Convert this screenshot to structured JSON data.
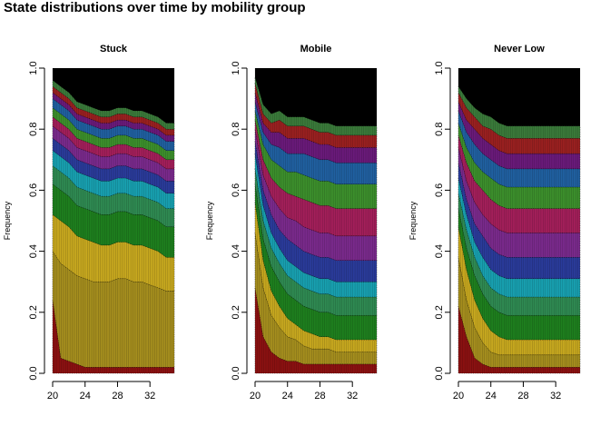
{
  "title": "State distributions over time by mobility group",
  "colors": {
    "background": "#ffffff",
    "top_band": "#000000",
    "segment_border": "#000000",
    "palette": [
      "#8b1111",
      "#a58e1e",
      "#c7a81f",
      "#1e7f1e",
      "#2f8a52",
      "#18a0b0",
      "#2a3b9a",
      "#7a2a8c",
      "#a31f5a",
      "#3c8f2c",
      "#2060a0",
      "#6a1a7a",
      "#9a2020",
      "#3a7a3a",
      "#2d2f8a",
      "#b02a7a"
    ]
  },
  "chart_data": [
    {
      "type": "area",
      "subtype": "stacked state-distribution plot",
      "title": "Stuck",
      "xlabel": "",
      "ylabel": "Frequency",
      "xlim": [
        20,
        35
      ],
      "ylim": [
        0,
        1
      ],
      "x_ticks": [
        "20",
        "24",
        "28",
        "32"
      ],
      "y_ticks": [
        "0.0",
        "0.2",
        "0.4",
        "0.6",
        "0.8",
        "1.0"
      ],
      "x": [
        20,
        21,
        22,
        23,
        24,
        25,
        26,
        27,
        28,
        29,
        30,
        31,
        32,
        33,
        34,
        35
      ],
      "series": [
        {
          "values": [
            0.24,
            0.05,
            0.04,
            0.03,
            0.02,
            0.02,
            0.02,
            0.02,
            0.02,
            0.02,
            0.02,
            0.02,
            0.02,
            0.02,
            0.02,
            0.02
          ]
        },
        {
          "values": [
            0.16,
            0.31,
            0.3,
            0.29,
            0.29,
            0.28,
            0.28,
            0.28,
            0.29,
            0.29,
            0.28,
            0.28,
            0.27,
            0.26,
            0.25,
            0.25
          ]
        },
        {
          "values": [
            0.12,
            0.14,
            0.14,
            0.13,
            0.13,
            0.13,
            0.12,
            0.12,
            0.12,
            0.12,
            0.12,
            0.12,
            0.12,
            0.12,
            0.11,
            0.11
          ]
        },
        {
          "values": [
            0.1,
            0.1,
            0.1,
            0.1,
            0.1,
            0.1,
            0.1,
            0.1,
            0.1,
            0.1,
            0.1,
            0.1,
            0.1,
            0.1,
            0.1,
            0.1
          ]
        },
        {
          "values": [
            0.06,
            0.06,
            0.06,
            0.06,
            0.06,
            0.06,
            0.06,
            0.06,
            0.06,
            0.06,
            0.06,
            0.06,
            0.06,
            0.06,
            0.06,
            0.06
          ]
        },
        {
          "values": [
            0.05,
            0.05,
            0.05,
            0.05,
            0.05,
            0.05,
            0.05,
            0.05,
            0.05,
            0.05,
            0.05,
            0.05,
            0.05,
            0.05,
            0.05,
            0.05
          ]
        },
        {
          "values": [
            0.04,
            0.04,
            0.04,
            0.04,
            0.04,
            0.04,
            0.04,
            0.04,
            0.04,
            0.04,
            0.04,
            0.04,
            0.04,
            0.04,
            0.04,
            0.04
          ]
        },
        {
          "values": [
            0.04,
            0.04,
            0.04,
            0.04,
            0.04,
            0.04,
            0.04,
            0.04,
            0.04,
            0.04,
            0.04,
            0.04,
            0.04,
            0.04,
            0.04,
            0.04
          ]
        },
        {
          "values": [
            0.03,
            0.03,
            0.03,
            0.03,
            0.03,
            0.03,
            0.03,
            0.03,
            0.03,
            0.03,
            0.03,
            0.03,
            0.03,
            0.03,
            0.03,
            0.03
          ]
        },
        {
          "values": [
            0.03,
            0.03,
            0.03,
            0.03,
            0.03,
            0.03,
            0.03,
            0.03,
            0.03,
            0.03,
            0.03,
            0.03,
            0.03,
            0.03,
            0.03,
            0.03
          ]
        },
        {
          "values": [
            0.03,
            0.03,
            0.03,
            0.03,
            0.03,
            0.03,
            0.03,
            0.03,
            0.03,
            0.03,
            0.03,
            0.03,
            0.03,
            0.03,
            0.03,
            0.03
          ]
        },
        {
          "values": [
            0.02,
            0.02,
            0.02,
            0.02,
            0.02,
            0.02,
            0.02,
            0.02,
            0.02,
            0.02,
            0.02,
            0.02,
            0.02,
            0.02,
            0.02,
            0.02
          ]
        },
        {
          "values": [
            0.02,
            0.02,
            0.02,
            0.02,
            0.02,
            0.02,
            0.02,
            0.02,
            0.02,
            0.02,
            0.02,
            0.02,
            0.02,
            0.02,
            0.02,
            0.02
          ]
        },
        {
          "values": [
            0.02,
            0.02,
            0.02,
            0.02,
            0.02,
            0.02,
            0.02,
            0.02,
            0.02,
            0.02,
            0.02,
            0.02,
            0.02,
            0.02,
            0.02,
            0.02
          ]
        }
      ]
    },
    {
      "type": "area",
      "subtype": "stacked state-distribution plot",
      "title": "Mobile",
      "xlabel": "",
      "ylabel": "Frequency",
      "xlim": [
        20,
        35
      ],
      "ylim": [
        0,
        1
      ],
      "x_ticks": [
        "20",
        "24",
        "28",
        "32"
      ],
      "y_ticks": [
        "0.0",
        "0.2",
        "0.4",
        "0.6",
        "0.8",
        "1.0"
      ],
      "x": [
        20,
        21,
        22,
        23,
        24,
        25,
        26,
        27,
        28,
        29,
        30,
        31,
        32,
        33,
        34,
        35
      ],
      "series": [
        {
          "values": [
            0.28,
            0.12,
            0.07,
            0.05,
            0.04,
            0.04,
            0.03,
            0.03,
            0.03,
            0.03,
            0.03,
            0.03,
            0.03,
            0.03,
            0.03,
            0.03
          ]
        },
        {
          "values": [
            0.18,
            0.16,
            0.12,
            0.1,
            0.08,
            0.07,
            0.06,
            0.05,
            0.05,
            0.05,
            0.04,
            0.04,
            0.04,
            0.04,
            0.04,
            0.04
          ]
        },
        {
          "values": [
            0.1,
            0.09,
            0.08,
            0.07,
            0.06,
            0.05,
            0.05,
            0.05,
            0.04,
            0.04,
            0.04,
            0.04,
            0.04,
            0.04,
            0.04,
            0.04
          ]
        },
        {
          "values": [
            0.06,
            0.07,
            0.08,
            0.08,
            0.08,
            0.08,
            0.08,
            0.08,
            0.08,
            0.08,
            0.08,
            0.08,
            0.08,
            0.08,
            0.08,
            0.08
          ]
        },
        {
          "values": [
            0.05,
            0.06,
            0.06,
            0.06,
            0.06,
            0.06,
            0.06,
            0.06,
            0.06,
            0.06,
            0.06,
            0.06,
            0.06,
            0.06,
            0.06,
            0.06
          ]
        },
        {
          "values": [
            0.05,
            0.05,
            0.05,
            0.05,
            0.05,
            0.05,
            0.05,
            0.05,
            0.05,
            0.05,
            0.05,
            0.05,
            0.05,
            0.05,
            0.05,
            0.05
          ]
        },
        {
          "values": [
            0.04,
            0.05,
            0.06,
            0.06,
            0.07,
            0.07,
            0.07,
            0.07,
            0.07,
            0.07,
            0.07,
            0.07,
            0.07,
            0.07,
            0.07,
            0.07
          ]
        },
        {
          "values": [
            0.04,
            0.05,
            0.06,
            0.07,
            0.07,
            0.08,
            0.08,
            0.08,
            0.08,
            0.08,
            0.08,
            0.08,
            0.08,
            0.08,
            0.08,
            0.08
          ]
        },
        {
          "values": [
            0.03,
            0.05,
            0.06,
            0.07,
            0.08,
            0.08,
            0.09,
            0.09,
            0.09,
            0.09,
            0.09,
            0.09,
            0.09,
            0.09,
            0.09,
            0.09
          ]
        },
        {
          "values": [
            0.03,
            0.05,
            0.06,
            0.07,
            0.07,
            0.08,
            0.08,
            0.08,
            0.08,
            0.08,
            0.08,
            0.08,
            0.08,
            0.08,
            0.08,
            0.08
          ]
        },
        {
          "values": [
            0.03,
            0.04,
            0.05,
            0.06,
            0.06,
            0.06,
            0.07,
            0.07,
            0.07,
            0.07,
            0.07,
            0.07,
            0.07,
            0.07,
            0.07,
            0.07
          ]
        },
        {
          "values": [
            0.03,
            0.03,
            0.04,
            0.05,
            0.05,
            0.05,
            0.05,
            0.05,
            0.05,
            0.05,
            0.05,
            0.05,
            0.05,
            0.05,
            0.05,
            0.05
          ]
        },
        {
          "values": [
            0.03,
            0.03,
            0.03,
            0.04,
            0.04,
            0.04,
            0.04,
            0.04,
            0.04,
            0.04,
            0.04,
            0.04,
            0.04,
            0.04,
            0.04,
            0.04
          ]
        },
        {
          "values": [
            0.02,
            0.03,
            0.03,
            0.03,
            0.03,
            0.03,
            0.03,
            0.03,
            0.03,
            0.03,
            0.03,
            0.03,
            0.03,
            0.03,
            0.03,
            0.03
          ]
        }
      ]
    },
    {
      "type": "area",
      "subtype": "stacked state-distribution plot",
      "title": "Never Low",
      "xlabel": "",
      "ylabel": "Frequency",
      "xlim": [
        20,
        35
      ],
      "ylim": [
        0,
        1
      ],
      "x_ticks": [
        "20",
        "24",
        "28",
        "32"
      ],
      "y_ticks": [
        "0.0",
        "0.2",
        "0.4",
        "0.6",
        "0.8",
        "1.0"
      ],
      "x": [
        20,
        21,
        22,
        23,
        24,
        25,
        26,
        27,
        28,
        29,
        30,
        31,
        32,
        33,
        34,
        35
      ],
      "series": [
        {
          "values": [
            0.22,
            0.12,
            0.05,
            0.03,
            0.02,
            0.02,
            0.02,
            0.02,
            0.02,
            0.02,
            0.02,
            0.02,
            0.02,
            0.02,
            0.02,
            0.02
          ]
        },
        {
          "values": [
            0.16,
            0.12,
            0.1,
            0.07,
            0.05,
            0.04,
            0.04,
            0.04,
            0.04,
            0.04,
            0.04,
            0.04,
            0.04,
            0.04,
            0.04,
            0.04
          ]
        },
        {
          "values": [
            0.1,
            0.1,
            0.09,
            0.08,
            0.07,
            0.06,
            0.05,
            0.05,
            0.05,
            0.05,
            0.05,
            0.05,
            0.05,
            0.05,
            0.05,
            0.05
          ]
        },
        {
          "values": [
            0.06,
            0.07,
            0.08,
            0.08,
            0.08,
            0.08,
            0.08,
            0.08,
            0.08,
            0.08,
            0.08,
            0.08,
            0.08,
            0.08,
            0.08,
            0.08
          ]
        },
        {
          "values": [
            0.05,
            0.06,
            0.06,
            0.06,
            0.06,
            0.06,
            0.06,
            0.06,
            0.06,
            0.06,
            0.06,
            0.06,
            0.06,
            0.06,
            0.06,
            0.06
          ]
        },
        {
          "values": [
            0.05,
            0.05,
            0.05,
            0.06,
            0.06,
            0.06,
            0.06,
            0.06,
            0.06,
            0.06,
            0.06,
            0.06,
            0.06,
            0.06,
            0.06,
            0.06
          ]
        },
        {
          "values": [
            0.05,
            0.05,
            0.06,
            0.07,
            0.07,
            0.07,
            0.07,
            0.07,
            0.07,
            0.07,
            0.07,
            0.07,
            0.07,
            0.07,
            0.07,
            0.07
          ]
        },
        {
          "values": [
            0.05,
            0.06,
            0.07,
            0.07,
            0.08,
            0.08,
            0.08,
            0.08,
            0.08,
            0.08,
            0.08,
            0.08,
            0.08,
            0.08,
            0.08,
            0.08
          ]
        },
        {
          "values": [
            0.04,
            0.06,
            0.07,
            0.08,
            0.08,
            0.08,
            0.08,
            0.08,
            0.08,
            0.08,
            0.08,
            0.08,
            0.08,
            0.08,
            0.08,
            0.08
          ]
        },
        {
          "values": [
            0.04,
            0.05,
            0.06,
            0.06,
            0.07,
            0.07,
            0.07,
            0.07,
            0.07,
            0.07,
            0.07,
            0.07,
            0.07,
            0.07,
            0.07,
            0.07
          ]
        },
        {
          "values": [
            0.04,
            0.05,
            0.06,
            0.06,
            0.06,
            0.06,
            0.06,
            0.06,
            0.06,
            0.06,
            0.06,
            0.06,
            0.06,
            0.06,
            0.06,
            0.06
          ]
        },
        {
          "values": [
            0.03,
            0.04,
            0.05,
            0.05,
            0.05,
            0.05,
            0.05,
            0.05,
            0.05,
            0.05,
            0.05,
            0.05,
            0.05,
            0.05,
            0.05,
            0.05
          ]
        },
        {
          "values": [
            0.03,
            0.04,
            0.04,
            0.04,
            0.05,
            0.05,
            0.05,
            0.05,
            0.05,
            0.05,
            0.05,
            0.05,
            0.05,
            0.05,
            0.05,
            0.05
          ]
        },
        {
          "values": [
            0.02,
            0.03,
            0.03,
            0.04,
            0.04,
            0.04,
            0.04,
            0.04,
            0.04,
            0.04,
            0.04,
            0.04,
            0.04,
            0.04,
            0.04,
            0.04
          ]
        }
      ]
    }
  ]
}
